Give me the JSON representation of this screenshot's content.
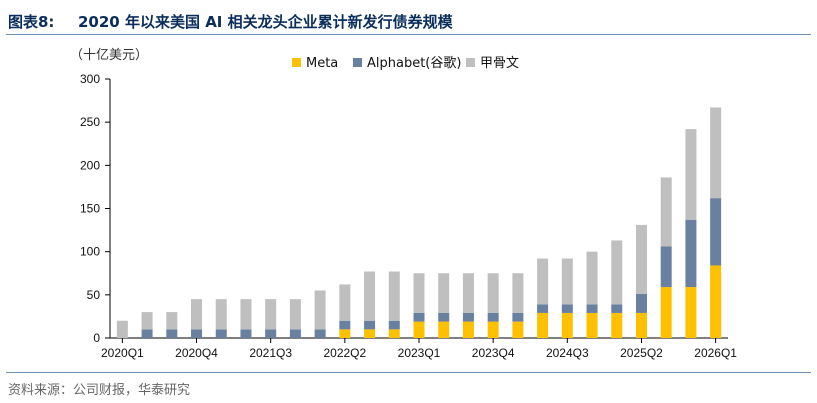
{
  "header": {
    "label": "图表8:",
    "title": "2020 年以来美国 AI 相关龙头企业累计新发行债券规模"
  },
  "unit": "（十亿美元）",
  "source": "资料来源：公司财报，华泰研究",
  "colors": {
    "Meta": "#ffc000",
    "Alphabet": "#6a80a0",
    "Oracle": "#bfbfbf"
  },
  "chart_data": {
    "type": "bar",
    "stacked": true,
    "title": "",
    "xlabel": "",
    "ylabel": "（十亿美元）",
    "ylim": [
      0,
      300
    ],
    "yticks": [
      0,
      50,
      100,
      150,
      200,
      250,
      300
    ],
    "grid": false,
    "legend_position": "top",
    "categories": [
      "2020Q1",
      "2020Q2",
      "2020Q3",
      "2020Q4",
      "2021Q1",
      "2021Q2",
      "2021Q3",
      "2021Q4",
      "2022Q1",
      "2022Q2",
      "2022Q3",
      "2022Q4",
      "2023Q1",
      "2023Q2",
      "2023Q3",
      "2023Q4",
      "2024Q1",
      "2024Q2",
      "2024Q3",
      "2024Q4",
      "2025Q1",
      "2025Q2",
      "2025Q3",
      "2025Q4",
      "2026Q1"
    ],
    "xtick_labels": [
      "2020Q1",
      "2020Q4",
      "2021Q3",
      "2022Q2",
      "2023Q1",
      "2023Q4",
      "2024Q3",
      "2025Q2",
      "2026Q1"
    ],
    "series": [
      {
        "name": "Meta",
        "values": [
          0,
          0,
          0,
          0,
          0,
          0,
          0,
          0,
          0,
          10,
          10,
          10,
          19,
          19,
          19,
          19,
          19,
          29,
          29,
          29,
          29,
          29,
          59,
          59,
          84
        ]
      },
      {
        "name": "Alphabet(谷歌)",
        "values": [
          0,
          10,
          10,
          10,
          10,
          10,
          10,
          10,
          10,
          10,
          10,
          10,
          10,
          10,
          10,
          10,
          10,
          10,
          10,
          10,
          10,
          22,
          47,
          78,
          78
        ]
      },
      {
        "name": "甲骨文",
        "values": [
          20,
          20,
          20,
          35,
          35,
          35,
          35,
          35,
          45,
          42,
          57,
          57,
          46,
          46,
          46,
          46,
          46,
          53,
          53,
          61,
          74,
          80,
          80,
          105,
          105
        ]
      }
    ]
  }
}
